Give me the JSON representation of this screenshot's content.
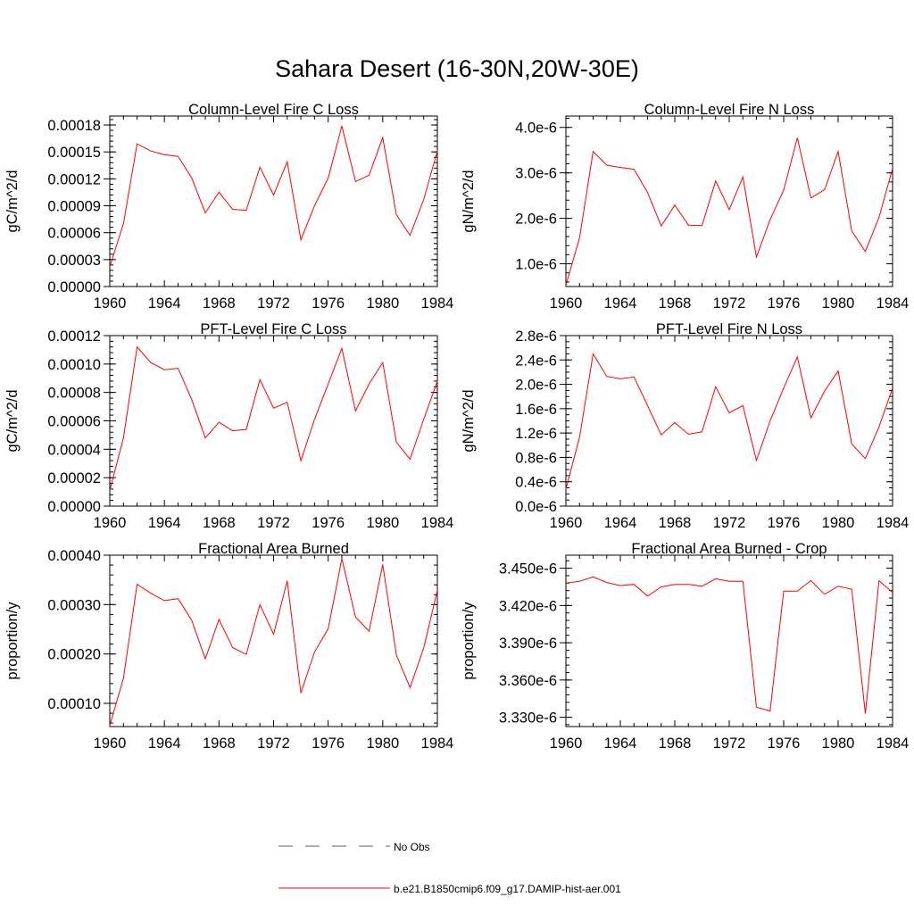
{
  "title": "Sahara Desert (16-30N,20W-30E)",
  "legend": {
    "obs_label": "No Obs",
    "model_label": "b.e21.B1850cmip6.f09_g17.DAMIP-hist-aer.001",
    "obs_color": "#4a5a9a",
    "model_color": "#ff0000"
  },
  "chart_data": [
    {
      "type": "line",
      "title": "Column-Level Fire C Loss",
      "ylabel": "gC/m^2/d",
      "xlim": [
        1960,
        1984
      ],
      "ylim": [
        0,
        0.00019
      ],
      "xticks": [
        "1960",
        "1964",
        "1968",
        "1972",
        "1976",
        "1980",
        "1984"
      ],
      "yticks": [
        {
          "v": 0,
          "label": "0.00000"
        },
        {
          "v": 3e-05,
          "label": "0.00003"
        },
        {
          "v": 6e-05,
          "label": "0.00006"
        },
        {
          "v": 9e-05,
          "label": "0.00009"
        },
        {
          "v": 0.00012,
          "label": "0.00012"
        },
        {
          "v": 0.00015,
          "label": "0.00015"
        },
        {
          "v": 0.00018,
          "label": "0.00018"
        }
      ],
      "yminor": 6e-06,
      "x": [
        1960,
        1961,
        1962,
        1963,
        1964,
        1965,
        1966,
        1967,
        1968,
        1969,
        1970,
        1971,
        1972,
        1973,
        1974,
        1975,
        1976,
        1977,
        1978,
        1979,
        1980,
        1981,
        1982,
        1983,
        1984
      ],
      "y": [
        2.2e-05,
        7e-05,
        0.000159,
        0.000151,
        0.000147,
        0.000145,
        0.000121,
        8.2e-05,
        0.000105,
        8.6e-05,
        8.5e-05,
        0.000133,
        0.000102,
        0.000139,
        5.2e-05,
        9e-05,
        0.000121,
        0.000179,
        0.000117,
        0.000124,
        0.000166,
        8e-05,
        5.7e-05,
        9.7e-05,
        0.000151
      ]
    },
    {
      "type": "line",
      "title": "Column-Level Fire N Loss",
      "ylabel": "gN/m^2/d",
      "xlim": [
        1960,
        1984
      ],
      "ylim": [
        5e-07,
        4.25e-06
      ],
      "xticks": [
        "1960",
        "1964",
        "1968",
        "1972",
        "1976",
        "1980",
        "1984"
      ],
      "yticks": [
        {
          "v": 1e-06,
          "label": "1.0e-6"
        },
        {
          "v": 2e-06,
          "label": "2.0e-6"
        },
        {
          "v": 3e-06,
          "label": "3.0e-6"
        },
        {
          "v": 4e-06,
          "label": "4.0e-6"
        }
      ],
      "yminor": 2e-07,
      "x": [
        1960,
        1961,
        1962,
        1963,
        1964,
        1965,
        1966,
        1967,
        1968,
        1969,
        1970,
        1971,
        1972,
        1973,
        1974,
        1975,
        1976,
        1977,
        1978,
        1979,
        1980,
        1981,
        1982,
        1983,
        1984
      ],
      "y": [
        5.3e-07,
        1.57e-06,
        3.47e-06,
        3.17e-06,
        3.12e-06,
        3.08e-06,
        2.57e-06,
        1.83e-06,
        2.29e-06,
        1.85e-06,
        1.84e-06,
        2.82e-06,
        2.19e-06,
        2.91e-06,
        1.15e-06,
        1.97e-06,
        2.62e-06,
        3.77e-06,
        2.45e-06,
        2.63e-06,
        3.47e-06,
        1.72e-06,
        1.27e-06,
        2.02e-06,
        3.1e-06
      ]
    },
    {
      "type": "line",
      "title": "PFT-Level Fire C Loss",
      "ylabel": "gC/m^2/d",
      "xlim": [
        1960,
        1984
      ],
      "ylim": [
        0,
        0.00012
      ],
      "xticks": [
        "1960",
        "1964",
        "1968",
        "1972",
        "1976",
        "1980",
        "1984"
      ],
      "yticks": [
        {
          "v": 0,
          "label": "0.00000"
        },
        {
          "v": 2e-05,
          "label": "0.00002"
        },
        {
          "v": 4e-05,
          "label": "0.00004"
        },
        {
          "v": 6e-05,
          "label": "0.00006"
        },
        {
          "v": 8e-05,
          "label": "0.00008"
        },
        {
          "v": 0.0001,
          "label": "0.00010"
        },
        {
          "v": 0.00012,
          "label": "0.00012"
        }
      ],
      "yminor": 4e-06,
      "x": [
        1960,
        1961,
        1962,
        1963,
        1964,
        1965,
        1966,
        1967,
        1968,
        1969,
        1970,
        1971,
        1972,
        1973,
        1974,
        1975,
        1976,
        1977,
        1978,
        1979,
        1980,
        1981,
        1982,
        1983,
        1984
      ],
      "y": [
        1.1e-05,
        4.8e-05,
        0.000112,
        0.000101,
        9.6e-05,
        9.7e-05,
        7.5e-05,
        4.8e-05,
        5.9e-05,
        5.3e-05,
        5.4e-05,
        8.9e-05,
        6.9e-05,
        7.3e-05,
        3.2e-05,
        6.1e-05,
        8.6e-05,
        0.000111,
        6.7e-05,
        8.6e-05,
        0.000101,
        4.5e-05,
        3.3e-05,
        6.1e-05,
        8.8e-05
      ]
    },
    {
      "type": "line",
      "title": "PFT-Level Fire N Loss",
      "ylabel": "gN/m^2/d",
      "xlim": [
        1960,
        1984
      ],
      "ylim": [
        0,
        2.8e-06
      ],
      "xticks": [
        "1960",
        "1964",
        "1968",
        "1972",
        "1976",
        "1980",
        "1984"
      ],
      "yticks": [
        {
          "v": 0,
          "label": "0.0e-6"
        },
        {
          "v": 4e-07,
          "label": "0.4e-6"
        },
        {
          "v": 8e-07,
          "label": "0.8e-6"
        },
        {
          "v": 1.2e-06,
          "label": "1.2e-6"
        },
        {
          "v": 1.6e-06,
          "label": "1.6e-6"
        },
        {
          "v": 2e-06,
          "label": "2.0e-6"
        },
        {
          "v": 2.4e-06,
          "label": "2.4e-6"
        },
        {
          "v": 2.8e-06,
          "label": "2.8e-6"
        }
      ],
      "yminor": 1e-07,
      "x": [
        1960,
        1961,
        1962,
        1963,
        1964,
        1965,
        1966,
        1967,
        1968,
        1969,
        1970,
        1971,
        1972,
        1973,
        1974,
        1975,
        1976,
        1977,
        1978,
        1979,
        1980,
        1981,
        1982,
        1983,
        1984
      ],
      "y": [
        2.8e-07,
        1.13e-06,
        2.5e-06,
        2.13e-06,
        2.09e-06,
        2.12e-06,
        1.65e-06,
        1.17e-06,
        1.37e-06,
        1.18e-06,
        1.22e-06,
        1.96e-06,
        1.53e-06,
        1.65e-06,
        7.5e-07,
        1.4e-06,
        1.94e-06,
        2.45e-06,
        1.45e-06,
        1.89e-06,
        2.22e-06,
        1.02e-06,
        7.8e-07,
        1.3e-06,
        1.94e-06
      ]
    },
    {
      "type": "line",
      "title": "Fractional Area Burned",
      "ylabel": "proportion/y",
      "xlim": [
        1960,
        1984
      ],
      "ylim": [
        5.3e-05,
        0.0004
      ],
      "xticks": [
        "1960",
        "1964",
        "1968",
        "1972",
        "1976",
        "1980",
        "1984"
      ],
      "yticks": [
        {
          "v": 0.0001,
          "label": "0.00010"
        },
        {
          "v": 0.0002,
          "label": "0.00020"
        },
        {
          "v": 0.0003,
          "label": "0.00030"
        },
        {
          "v": 0.0004,
          "label": "0.00040"
        }
      ],
      "yminor": 2e-05,
      "x": [
        1960,
        1961,
        1962,
        1963,
        1964,
        1965,
        1966,
        1967,
        1968,
        1969,
        1970,
        1971,
        1972,
        1973,
        1974,
        1975,
        1976,
        1977,
        1978,
        1979,
        1980,
        1981,
        1982,
        1983,
        1984
      ],
      "y": [
        5.5e-05,
        0.000151,
        0.000341,
        0.000323,
        0.000308,
        0.000312,
        0.000268,
        0.00019,
        0.00027,
        0.000213,
        0.000199,
        0.0003,
        0.00024,
        0.000348,
        0.000121,
        0.000204,
        0.000251,
        0.000393,
        0.000275,
        0.000246,
        0.000381,
        0.000198,
        0.000132,
        0.000212,
        0.000329
      ]
    },
    {
      "type": "line",
      "title": "Fractional Area Burned - Crop",
      "ylabel": "proportion/y",
      "xlim": [
        1960,
        1984
      ],
      "ylim": [
        3.3225e-06,
        3.4605e-06
      ],
      "xticks": [
        "1960",
        "1964",
        "1968",
        "1972",
        "1976",
        "1980",
        "1984"
      ],
      "yticks": [
        {
          "v": 3.33e-06,
          "label": "3.330e-6"
        },
        {
          "v": 3.36e-06,
          "label": "3.360e-6"
        },
        {
          "v": 3.39e-06,
          "label": "3.390e-6"
        },
        {
          "v": 3.42e-06,
          "label": "3.420e-6"
        },
        {
          "v": 3.45e-06,
          "label": "3.450e-6"
        }
      ],
      "yminor": 6e-09,
      "x": [
        1960,
        1961,
        1962,
        1963,
        1964,
        1965,
        1966,
        1967,
        1968,
        1969,
        1970,
        1971,
        1972,
        1973,
        1974,
        1975,
        1976,
        1977,
        1978,
        1979,
        1980,
        1981,
        1982,
        1983,
        1984
      ],
      "y": [
        3.438e-06,
        3.4395e-06,
        3.443e-06,
        3.4385e-06,
        3.436e-06,
        3.437e-06,
        3.4275e-06,
        3.435e-06,
        3.437e-06,
        3.437e-06,
        3.4355e-06,
        3.4415e-06,
        3.4395e-06,
        3.4395e-06,
        3.338e-06,
        3.335e-06,
        3.4315e-06,
        3.4315e-06,
        3.44e-06,
        3.429e-06,
        3.4355e-06,
        3.433e-06,
        3.333e-06,
        3.44e-06,
        3.4305e-06
      ]
    }
  ]
}
